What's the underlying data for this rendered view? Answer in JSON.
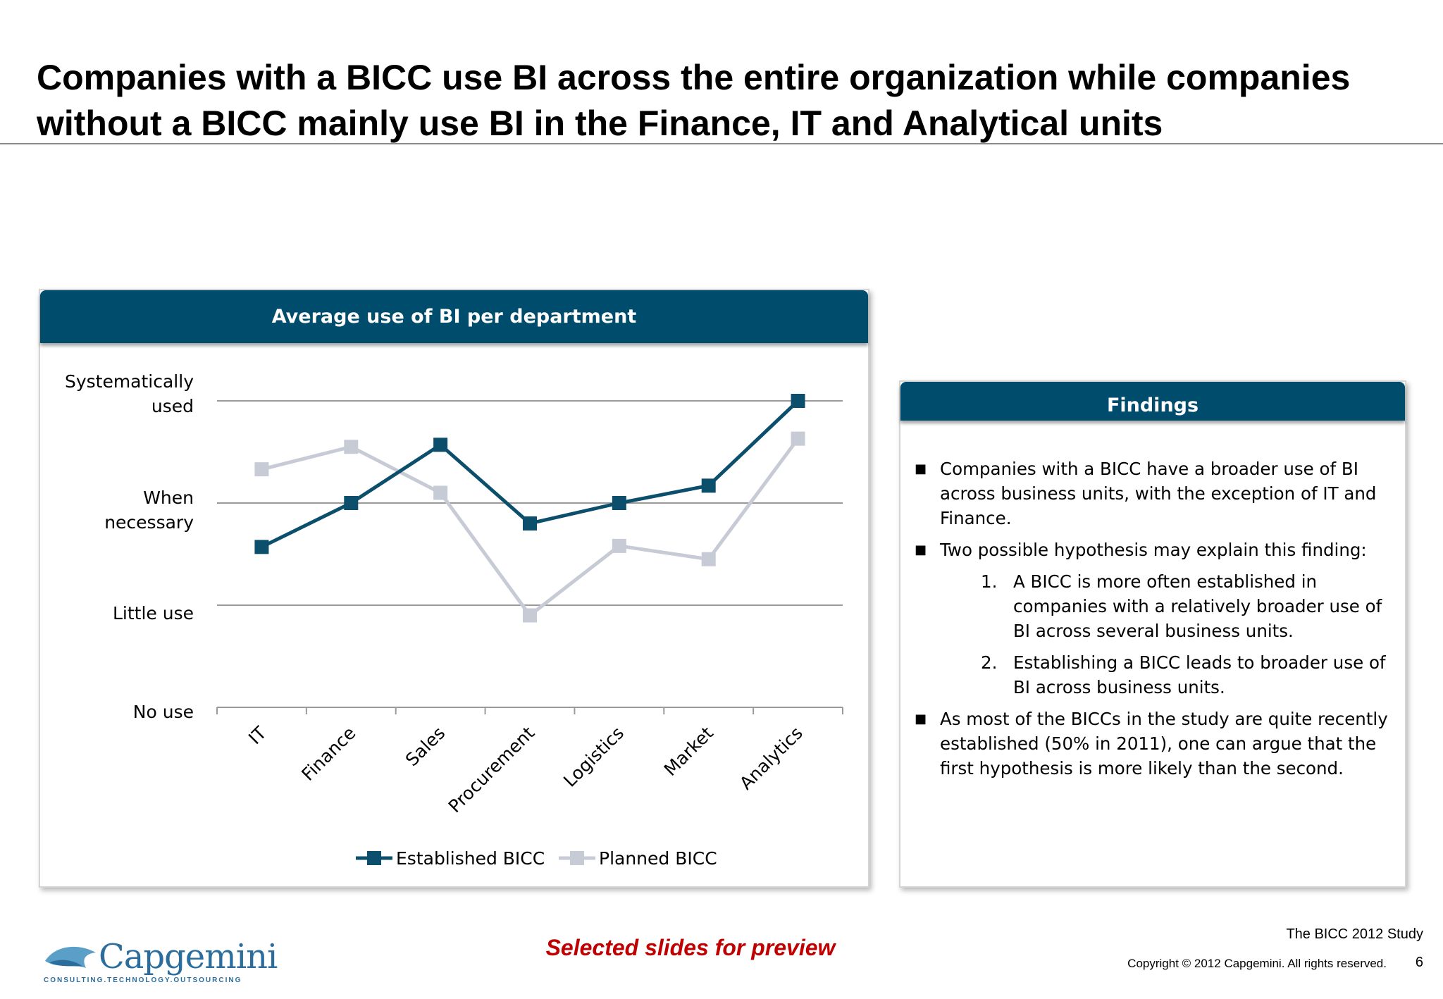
{
  "title": "Companies with a BICC use BI across the entire organization while companies without a BICC mainly use BI in the Finance, IT and Analytical units",
  "chart_panel": {
    "header": "Average use of BI per department"
  },
  "chart_data": {
    "type": "line",
    "title": "Average use of BI per department",
    "categories": [
      "IT",
      "Finance",
      "Sales",
      "Procurement",
      "Logistics",
      "Market",
      "Analytics"
    ],
    "y_tick_labels": [
      {
        "value": 0,
        "lines": [
          "No use"
        ]
      },
      {
        "value": 1,
        "lines": [
          "Little use"
        ]
      },
      {
        "value": 2,
        "lines": [
          "When",
          "necessary"
        ]
      },
      {
        "value": 3,
        "lines": [
          "Systematically",
          "used"
        ]
      }
    ],
    "ylim": [
      0,
      3
    ],
    "grid": true,
    "legend_position": "bottom",
    "series": [
      {
        "name": "Established BICC",
        "color": "#0b4f6c",
        "values": [
          1.57,
          2.0,
          2.57,
          1.8,
          2.0,
          2.17,
          3.0
        ]
      },
      {
        "name": "Planned BICC",
        "color": "#c7cbd6",
        "values": [
          2.33,
          2.55,
          2.1,
          0.9,
          1.58,
          1.45,
          2.63
        ]
      }
    ]
  },
  "findings": {
    "header": "Findings",
    "item1": "Companies with a BICC have a broader use of BI across business units, with the exception of IT and Finance.",
    "item2": "Two possible hypothesis may explain this finding:",
    "sub1_num": "1.",
    "sub1": "A BICC is more often established in companies with a  relatively broader use of BI across several business units.",
    "sub2_num": "2.",
    "sub2": "Establishing a BICC leads to broader use of BI across business units.",
    "item3": "As most of the BICCs in the study are quite recently established (50% in 2011), one can argue that the first hypothesis is more likely than the second."
  },
  "footer": {
    "preview": "Selected slides for preview",
    "study": "The BICC 2012 Study",
    "copyright": "Copyright © 2012 Capgemini. All rights reserved.",
    "page": "6",
    "logo_text": "Capgemini",
    "logo_tagline": "CONSULTING.TECHNOLOGY.OUTSOURCING"
  }
}
